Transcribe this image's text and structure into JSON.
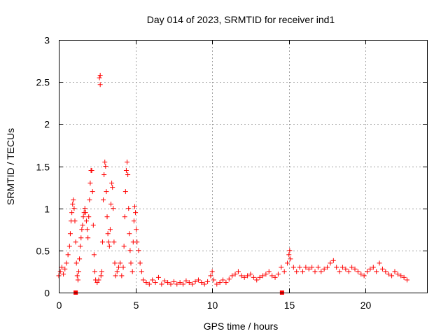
{
  "chart_data": {
    "type": "scatter",
    "title": "Day 014 of 2023, SRMTID for receiver ind1",
    "xlabel": "GPS time / hours",
    "ylabel": "SRMTID / TECUs",
    "xlim": [
      0,
      24
    ],
    "ylim": [
      0,
      3
    ],
    "xticks": [
      0,
      5,
      10,
      15,
      20
    ],
    "yticks": [
      0,
      0.5,
      1,
      1.5,
      2,
      2.5,
      3
    ],
    "xtick_labels": [
      "0",
      "5",
      "10",
      "15",
      "20"
    ],
    "ytick_labels": [
      "0",
      "0.5",
      "1",
      "1.5",
      "2",
      "2.5",
      "3"
    ],
    "grid": true,
    "marker": "plus",
    "color": "#ff0000",
    "series": [
      {
        "name": "SRMTID",
        "points": [
          [
            0.0,
            0.2
          ],
          [
            0.1,
            0.25
          ],
          [
            0.2,
            0.3
          ],
          [
            0.3,
            0.22
          ],
          [
            0.4,
            0.28
          ],
          [
            0.5,
            0.35
          ],
          [
            0.6,
            0.45
          ],
          [
            0.7,
            0.55
          ],
          [
            0.75,
            0.7
          ],
          [
            0.8,
            0.85
          ],
          [
            0.85,
            0.95
          ],
          [
            0.9,
            1.05
          ],
          [
            0.95,
            1.1
          ],
          [
            1.0,
            1.0
          ],
          [
            1.05,
            0.85
          ],
          [
            1.1,
            0.6
          ],
          [
            1.15,
            0.35
          ],
          [
            1.2,
            0.2
          ],
          [
            1.25,
            0.15
          ],
          [
            1.3,
            0.25
          ],
          [
            1.35,
            0.4
          ],
          [
            1.4,
            0.55
          ],
          [
            1.45,
            0.65
          ],
          [
            1.5,
            0.75
          ],
          [
            1.55,
            0.8
          ],
          [
            1.6,
            0.9
          ],
          [
            1.65,
            0.95
          ],
          [
            1.7,
            1.0
          ],
          [
            1.75,
            0.95
          ],
          [
            1.8,
            0.85
          ],
          [
            1.85,
            0.75
          ],
          [
            1.9,
            0.65
          ],
          [
            1.95,
            0.9
          ],
          [
            2.0,
            1.1
          ],
          [
            2.05,
            1.3
          ],
          [
            2.1,
            1.45
          ],
          [
            2.15,
            1.45
          ],
          [
            2.2,
            1.2
          ],
          [
            2.25,
            0.8
          ],
          [
            2.3,
            0.45
          ],
          [
            2.35,
            0.25
          ],
          [
            2.4,
            0.15
          ],
          [
            2.5,
            0.12
          ],
          [
            2.6,
            0.15
          ],
          [
            2.65,
            2.55
          ],
          [
            2.7,
            2.58
          ],
          [
            2.7,
            2.47
          ],
          [
            2.75,
            0.2
          ],
          [
            2.8,
            0.25
          ],
          [
            2.85,
            0.6
          ],
          [
            2.9,
            1.1
          ],
          [
            2.95,
            1.4
          ],
          [
            3.0,
            1.55
          ],
          [
            3.05,
            1.5
          ],
          [
            3.1,
            1.2
          ],
          [
            3.15,
            0.9
          ],
          [
            3.2,
            0.7
          ],
          [
            3.25,
            0.6
          ],
          [
            3.3,
            0.55
          ],
          [
            3.35,
            0.75
          ],
          [
            3.4,
            1.05
          ],
          [
            3.45,
            1.3
          ],
          [
            3.5,
            1.25
          ],
          [
            3.55,
            1.0
          ],
          [
            3.6,
            0.6
          ],
          [
            3.65,
            0.35
          ],
          [
            3.7,
            0.2
          ],
          [
            3.8,
            0.25
          ],
          [
            3.9,
            0.3
          ],
          [
            4.0,
            0.35
          ],
          [
            4.1,
            0.2
          ],
          [
            4.2,
            0.3
          ],
          [
            4.25,
            0.55
          ],
          [
            4.3,
            0.9
          ],
          [
            4.35,
            1.2
          ],
          [
            4.4,
            1.45
          ],
          [
            4.45,
            1.55
          ],
          [
            4.5,
            1.4
          ],
          [
            4.55,
            1.0
          ],
          [
            4.6,
            0.7
          ],
          [
            4.65,
            0.5
          ],
          [
            4.7,
            0.35
          ],
          [
            4.8,
            0.25
          ],
          [
            4.85,
            0.6
          ],
          [
            4.9,
            0.85
          ],
          [
            4.95,
            1.02
          ],
          [
            5.0,
            0.95
          ],
          [
            5.05,
            0.75
          ],
          [
            5.1,
            0.6
          ],
          [
            5.2,
            0.5
          ],
          [
            5.3,
            0.35
          ],
          [
            5.4,
            0.25
          ],
          [
            5.5,
            0.15
          ],
          [
            5.7,
            0.12
          ],
          [
            5.9,
            0.1
          ],
          [
            6.1,
            0.15
          ],
          [
            6.3,
            0.12
          ],
          [
            6.5,
            0.18
          ],
          [
            6.7,
            0.1
          ],
          [
            6.9,
            0.14
          ],
          [
            7.1,
            0.12
          ],
          [
            7.3,
            0.1
          ],
          [
            7.5,
            0.13
          ],
          [
            7.7,
            0.1
          ],
          [
            7.9,
            0.12
          ],
          [
            8.1,
            0.1
          ],
          [
            8.3,
            0.14
          ],
          [
            8.5,
            0.12
          ],
          [
            8.7,
            0.1
          ],
          [
            8.9,
            0.13
          ],
          [
            9.1,
            0.15
          ],
          [
            9.3,
            0.12
          ],
          [
            9.5,
            0.1
          ],
          [
            9.7,
            0.13
          ],
          [
            9.9,
            0.2
          ],
          [
            10.0,
            0.25
          ],
          [
            10.1,
            0.15
          ],
          [
            10.3,
            0.1
          ],
          [
            10.5,
            0.12
          ],
          [
            10.7,
            0.15
          ],
          [
            10.9,
            0.12
          ],
          [
            11.1,
            0.16
          ],
          [
            11.3,
            0.2
          ],
          [
            11.5,
            0.22
          ],
          [
            11.7,
            0.25
          ],
          [
            11.9,
            0.2
          ],
          [
            12.1,
            0.18
          ],
          [
            12.3,
            0.2
          ],
          [
            12.5,
            0.22
          ],
          [
            12.7,
            0.18
          ],
          [
            12.9,
            0.15
          ],
          [
            13.1,
            0.18
          ],
          [
            13.3,
            0.2
          ],
          [
            13.5,
            0.22
          ],
          [
            13.7,
            0.25
          ],
          [
            13.9,
            0.2
          ],
          [
            14.1,
            0.18
          ],
          [
            14.3,
            0.22
          ],
          [
            14.5,
            0.3
          ],
          [
            14.7,
            0.25
          ],
          [
            14.9,
            0.35
          ],
          [
            15.0,
            0.45
          ],
          [
            15.05,
            0.5
          ],
          [
            15.1,
            0.4
          ],
          [
            15.3,
            0.3
          ],
          [
            15.5,
            0.25
          ],
          [
            15.7,
            0.3
          ],
          [
            15.9,
            0.25
          ],
          [
            16.1,
            0.3
          ],
          [
            16.3,
            0.28
          ],
          [
            16.5,
            0.3
          ],
          [
            16.7,
            0.25
          ],
          [
            16.9,
            0.3
          ],
          [
            17.1,
            0.25
          ],
          [
            17.3,
            0.28
          ],
          [
            17.5,
            0.3
          ],
          [
            17.7,
            0.35
          ],
          [
            17.9,
            0.38
          ],
          [
            18.1,
            0.3
          ],
          [
            18.3,
            0.25
          ],
          [
            18.5,
            0.3
          ],
          [
            18.7,
            0.28
          ],
          [
            18.9,
            0.25
          ],
          [
            19.1,
            0.3
          ],
          [
            19.3,
            0.28
          ],
          [
            19.5,
            0.25
          ],
          [
            19.7,
            0.22
          ],
          [
            19.9,
            0.2
          ],
          [
            20.1,
            0.25
          ],
          [
            20.3,
            0.28
          ],
          [
            20.5,
            0.3
          ],
          [
            20.7,
            0.25
          ],
          [
            20.9,
            0.35
          ],
          [
            21.1,
            0.28
          ],
          [
            21.3,
            0.25
          ],
          [
            21.5,
            0.22
          ],
          [
            21.7,
            0.2
          ],
          [
            21.9,
            0.25
          ],
          [
            22.1,
            0.22
          ],
          [
            22.3,
            0.2
          ],
          [
            22.5,
            0.18
          ],
          [
            22.7,
            0.15
          ]
        ],
        "zero_markers": [
          1.1,
          14.55
        ]
      }
    ]
  }
}
